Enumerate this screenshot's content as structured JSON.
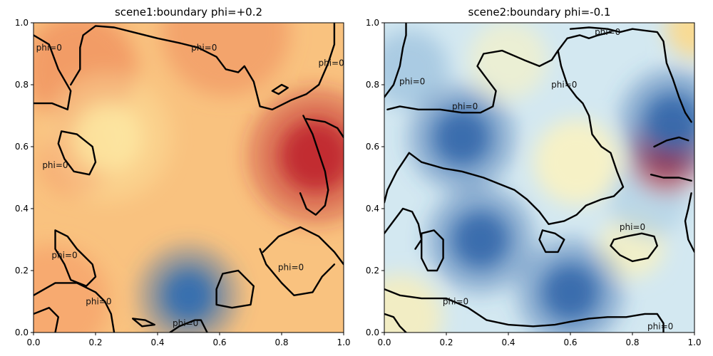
{
  "chart_data": [
    {
      "type": "heatmap",
      "title": "scene1:boundary phi=+0.2",
      "xlabel": "",
      "ylabel": "",
      "xlim": [
        0.0,
        1.0
      ],
      "ylim": [
        0.0,
        1.0
      ],
      "xticks": [
        "0.0",
        "0.2",
        "0.4",
        "0.6",
        "0.8",
        "1.0"
      ],
      "yticks": [
        "0.0",
        "0.2",
        "0.4",
        "0.6",
        "0.8",
        "1.0"
      ],
      "colormap": "RdYlBu_r",
      "field_baseline": 0.2,
      "extrema": [
        {
          "x": 0.91,
          "y": 0.57,
          "kind": "max"
        },
        {
          "x": 0.5,
          "y": 0.12,
          "kind": "min"
        },
        {
          "x": 0.24,
          "y": 0.63,
          "kind": "low"
        }
      ],
      "contour_level": "phi=0",
      "contour_labels": [
        {
          "x": 0.05,
          "y": 0.92,
          "text": "phi=0"
        },
        {
          "x": 0.55,
          "y": 0.92,
          "text": "phi=0"
        },
        {
          "x": 0.96,
          "y": 0.87,
          "text": "phi=0"
        },
        {
          "x": 0.07,
          "y": 0.54,
          "text": "phi=0"
        },
        {
          "x": 0.1,
          "y": 0.25,
          "text": "phi=0"
        },
        {
          "x": 0.21,
          "y": 0.1,
          "text": "phi=0"
        },
        {
          "x": 0.49,
          "y": 0.03,
          "text": "phi=0"
        },
        {
          "x": 0.83,
          "y": 0.21,
          "text": "phi=0"
        }
      ],
      "contours": [
        [
          [
            0.0,
            0.74
          ],
          [
            0.06,
            0.74
          ],
          [
            0.11,
            0.72
          ],
          [
            0.12,
            0.78
          ],
          [
            0.08,
            0.85
          ],
          [
            0.05,
            0.93
          ],
          [
            0.0,
            0.96
          ]
        ],
        [
          [
            0.12,
            0.8
          ],
          [
            0.15,
            0.85
          ],
          [
            0.15,
            0.92
          ],
          [
            0.16,
            0.96
          ],
          [
            0.2,
            0.99
          ],
          [
            0.26,
            0.985
          ],
          [
            0.32,
            0.97
          ],
          [
            0.4,
            0.95
          ],
          [
            0.47,
            0.935
          ],
          [
            0.53,
            0.92
          ],
          [
            0.59,
            0.89
          ],
          [
            0.62,
            0.85
          ],
          [
            0.66,
            0.84
          ],
          [
            0.68,
            0.86
          ],
          [
            0.71,
            0.81
          ],
          [
            0.73,
            0.73
          ],
          [
            0.77,
            0.72
          ],
          [
            0.83,
            0.75
          ],
          [
            0.88,
            0.77
          ],
          [
            0.92,
            0.8
          ],
          [
            0.95,
            0.87
          ],
          [
            0.97,
            0.93
          ],
          [
            0.97,
            1.0
          ]
        ],
        [
          [
            0.88,
            0.69
          ],
          [
            0.94,
            0.68
          ],
          [
            0.98,
            0.66
          ],
          [
            1.0,
            0.63
          ]
        ],
        [
          [
            0.87,
            0.7
          ],
          [
            0.9,
            0.64
          ],
          [
            0.92,
            0.58
          ],
          [
            0.94,
            0.52
          ],
          [
            0.95,
            0.46
          ],
          [
            0.94,
            0.41
          ],
          [
            0.91,
            0.38
          ],
          [
            0.88,
            0.4
          ],
          [
            0.86,
            0.45
          ]
        ],
        [
          [
            0.77,
            0.78
          ],
          [
            0.8,
            0.8
          ],
          [
            0.82,
            0.79
          ],
          [
            0.79,
            0.77
          ],
          [
            0.77,
            0.78
          ]
        ],
        [
          [
            0.09,
            0.65
          ],
          [
            0.14,
            0.64
          ],
          [
            0.19,
            0.6
          ],
          [
            0.2,
            0.55
          ],
          [
            0.18,
            0.51
          ],
          [
            0.13,
            0.52
          ],
          [
            0.1,
            0.56
          ],
          [
            0.08,
            0.61
          ],
          [
            0.09,
            0.65
          ]
        ],
        [
          [
            0.07,
            0.33
          ],
          [
            0.11,
            0.31
          ],
          [
            0.14,
            0.27
          ],
          [
            0.19,
            0.22
          ],
          [
            0.2,
            0.18
          ],
          [
            0.17,
            0.15
          ],
          [
            0.12,
            0.17
          ],
          [
            0.1,
            0.22
          ],
          [
            0.07,
            0.27
          ],
          [
            0.07,
            0.33
          ]
        ],
        [
          [
            0.0,
            0.12
          ],
          [
            0.07,
            0.16
          ],
          [
            0.14,
            0.16
          ],
          [
            0.2,
            0.13
          ],
          [
            0.23,
            0.1
          ],
          [
            0.25,
            0.06
          ],
          [
            0.26,
            0.0
          ]
        ],
        [
          [
            0.0,
            0.06
          ],
          [
            0.05,
            0.08
          ],
          [
            0.08,
            0.05
          ],
          [
            0.07,
            0.0
          ]
        ],
        [
          [
            0.32,
            0.045
          ],
          [
            0.36,
            0.04
          ],
          [
            0.39,
            0.025
          ],
          [
            0.35,
            0.02
          ],
          [
            0.32,
            0.045
          ]
        ],
        [
          [
            0.44,
            0.0
          ],
          [
            0.47,
            0.02
          ],
          [
            0.52,
            0.04
          ],
          [
            0.54,
            0.04
          ],
          [
            0.56,
            0.0
          ]
        ],
        [
          [
            0.59,
            0.09
          ],
          [
            0.64,
            0.08
          ],
          [
            0.7,
            0.09
          ],
          [
            0.71,
            0.15
          ],
          [
            0.66,
            0.2
          ],
          [
            0.61,
            0.19
          ],
          [
            0.59,
            0.14
          ],
          [
            0.59,
            0.09
          ]
        ],
        [
          [
            0.74,
            0.26
          ],
          [
            0.79,
            0.31
          ],
          [
            0.86,
            0.34
          ],
          [
            0.92,
            0.31
          ],
          [
            0.97,
            0.26
          ],
          [
            1.0,
            0.22
          ]
        ],
        [
          [
            0.73,
            0.27
          ],
          [
            0.75,
            0.22
          ],
          [
            0.8,
            0.16
          ],
          [
            0.84,
            0.12
          ],
          [
            0.9,
            0.13
          ],
          [
            0.93,
            0.18
          ],
          [
            0.97,
            0.22
          ]
        ]
      ]
    },
    {
      "type": "heatmap",
      "title": "scene2:boundary phi=-0.1",
      "xlabel": "",
      "ylabel": "",
      "xlim": [
        0.0,
        1.0
      ],
      "ylim": [
        0.0,
        1.0
      ],
      "xticks": [
        "0.0",
        "0.2",
        "0.4",
        "0.6",
        "0.8",
        "1.0"
      ],
      "yticks": [
        "0.0",
        "0.2",
        "0.4",
        "0.6",
        "0.8",
        "1.0"
      ],
      "colormap": "RdYlBu_r",
      "field_baseline": -0.1,
      "extrema": [
        {
          "x": 0.91,
          "y": 0.57,
          "kind": "max"
        },
        {
          "x": 0.25,
          "y": 0.63,
          "kind": "min"
        },
        {
          "x": 0.31,
          "y": 0.3,
          "kind": "min"
        },
        {
          "x": 0.6,
          "y": 0.13,
          "kind": "min"
        },
        {
          "x": 0.93,
          "y": 0.68,
          "kind": "min"
        }
      ],
      "contour_level": "phi=0",
      "contour_labels": [
        {
          "x": 0.72,
          "y": 0.97,
          "text": "phi=0"
        },
        {
          "x": 0.09,
          "y": 0.81,
          "text": "phi=0"
        },
        {
          "x": 0.26,
          "y": 0.73,
          "text": "phi=0"
        },
        {
          "x": 0.58,
          "y": 0.8,
          "text": "phi=0"
        },
        {
          "x": 0.8,
          "y": 0.34,
          "text": "phi=0"
        },
        {
          "x": 0.23,
          "y": 0.1,
          "text": "phi=0"
        },
        {
          "x": 0.89,
          "y": 0.02,
          "text": "phi=0"
        }
      ],
      "contours": [
        [
          [
            0.0,
            0.76
          ],
          [
            0.03,
            0.8
          ],
          [
            0.05,
            0.86
          ],
          [
            0.06,
            0.92
          ],
          [
            0.07,
            0.96
          ],
          [
            0.07,
            1.0
          ]
        ],
        [
          [
            0.01,
            0.72
          ],
          [
            0.05,
            0.73
          ],
          [
            0.11,
            0.72
          ],
          [
            0.18,
            0.72
          ],
          [
            0.25,
            0.71
          ],
          [
            0.31,
            0.71
          ],
          [
            0.35,
            0.73
          ],
          [
            0.36,
            0.78
          ],
          [
            0.33,
            0.82
          ],
          [
            0.3,
            0.86
          ],
          [
            0.32,
            0.9
          ],
          [
            0.38,
            0.91
          ],
          [
            0.45,
            0.88
          ],
          [
            0.5,
            0.86
          ],
          [
            0.54,
            0.88
          ],
          [
            0.56,
            0.91
          ],
          [
            0.57,
            0.86
          ],
          [
            0.59,
            0.8
          ],
          [
            0.62,
            0.76
          ],
          [
            0.64,
            0.74
          ],
          [
            0.66,
            0.7
          ],
          [
            0.67,
            0.64
          ],
          [
            0.7,
            0.6
          ],
          [
            0.73,
            0.58
          ],
          [
            0.75,
            0.52
          ],
          [
            0.77,
            0.47
          ],
          [
            0.74,
            0.44
          ],
          [
            0.7,
            0.43
          ],
          [
            0.65,
            0.41
          ],
          [
            0.62,
            0.38
          ],
          [
            0.58,
            0.36
          ],
          [
            0.53,
            0.35
          ],
          [
            0.5,
            0.39
          ],
          [
            0.46,
            0.43
          ],
          [
            0.42,
            0.46
          ],
          [
            0.37,
            0.48
          ],
          [
            0.32,
            0.5
          ],
          [
            0.25,
            0.52
          ],
          [
            0.19,
            0.53
          ],
          [
            0.12,
            0.55
          ],
          [
            0.08,
            0.58
          ],
          [
            0.04,
            0.52
          ],
          [
            0.01,
            0.46
          ],
          [
            0.0,
            0.42
          ]
        ],
        [
          [
            0.0,
            0.32
          ],
          [
            0.03,
            0.36
          ],
          [
            0.06,
            0.4
          ],
          [
            0.09,
            0.39
          ],
          [
            0.11,
            0.35
          ],
          [
            0.12,
            0.3
          ],
          [
            0.1,
            0.27
          ]
        ],
        [
          [
            0.6,
            0.98
          ],
          [
            0.66,
            0.985
          ],
          [
            0.72,
            0.98
          ],
          [
            0.76,
            0.97
          ],
          [
            0.8,
            0.98
          ],
          [
            0.84,
            0.975
          ],
          [
            0.88,
            0.97
          ],
          [
            0.9,
            0.94
          ],
          [
            0.91,
            0.87
          ],
          [
            0.93,
            0.82
          ],
          [
            0.95,
            0.76
          ],
          [
            0.97,
            0.71
          ],
          [
            0.99,
            0.68
          ]
        ],
        [
          [
            0.56,
            0.91
          ],
          [
            0.59,
            0.95
          ],
          [
            0.63,
            0.96
          ],
          [
            0.66,
            0.95
          ],
          [
            0.69,
            0.96
          ],
          [
            0.73,
            0.97
          ]
        ],
        [
          [
            0.87,
            0.6
          ],
          [
            0.91,
            0.62
          ],
          [
            0.95,
            0.63
          ],
          [
            0.98,
            0.62
          ]
        ],
        [
          [
            0.86,
            0.51
          ],
          [
            0.9,
            0.5
          ],
          [
            0.95,
            0.5
          ],
          [
            0.99,
            0.49
          ]
        ],
        [
          [
            0.99,
            0.45
          ],
          [
            0.98,
            0.4
          ],
          [
            0.97,
            0.36
          ],
          [
            0.98,
            0.3
          ],
          [
            1.0,
            0.26
          ]
        ],
        [
          [
            0.12,
            0.32
          ],
          [
            0.16,
            0.33
          ],
          [
            0.19,
            0.3
          ],
          [
            0.19,
            0.24
          ],
          [
            0.17,
            0.2
          ],
          [
            0.14,
            0.2
          ],
          [
            0.12,
            0.24
          ],
          [
            0.12,
            0.28
          ],
          [
            0.12,
            0.32
          ]
        ],
        [
          [
            0.51,
            0.33
          ],
          [
            0.55,
            0.32
          ],
          [
            0.58,
            0.3
          ],
          [
            0.56,
            0.26
          ],
          [
            0.52,
            0.26
          ],
          [
            0.5,
            0.3
          ],
          [
            0.51,
            0.33
          ]
        ],
        [
          [
            0.74,
            0.3
          ],
          [
            0.78,
            0.31
          ],
          [
            0.83,
            0.32
          ],
          [
            0.87,
            0.31
          ],
          [
            0.88,
            0.28
          ],
          [
            0.85,
            0.24
          ],
          [
            0.8,
            0.23
          ],
          [
            0.76,
            0.25
          ],
          [
            0.73,
            0.28
          ],
          [
            0.74,
            0.3
          ]
        ],
        [
          [
            0.0,
            0.14
          ],
          [
            0.05,
            0.12
          ],
          [
            0.12,
            0.11
          ],
          [
            0.2,
            0.11
          ],
          [
            0.27,
            0.08
          ],
          [
            0.33,
            0.04
          ],
          [
            0.4,
            0.025
          ],
          [
            0.48,
            0.02
          ],
          [
            0.55,
            0.025
          ],
          [
            0.6,
            0.035
          ],
          [
            0.66,
            0.045
          ],
          [
            0.72,
            0.05
          ],
          [
            0.78,
            0.05
          ],
          [
            0.84,
            0.06
          ],
          [
            0.88,
            0.06
          ],
          [
            0.9,
            0.03
          ],
          [
            0.9,
            0.0
          ]
        ],
        [
          [
            0.0,
            0.06
          ],
          [
            0.03,
            0.05
          ],
          [
            0.05,
            0.02
          ],
          [
            0.07,
            0.0
          ]
        ]
      ]
    }
  ]
}
